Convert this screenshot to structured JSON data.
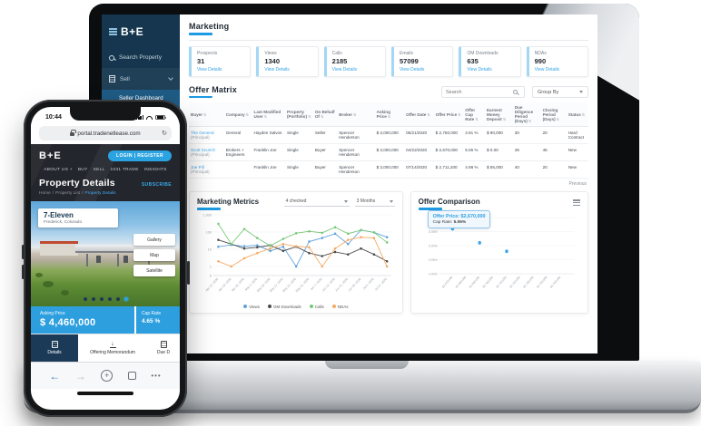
{
  "laptop": {
    "sidebar": {
      "logo": "B+E",
      "items": [
        {
          "icon": "search-icon",
          "label": "Search Property"
        },
        {
          "icon": "building-icon",
          "label": "Sell"
        }
      ],
      "active_subitem": "Seller Dashboard"
    },
    "marketing": {
      "title": "Marketing",
      "cards": [
        {
          "label": "Prospects",
          "value": "31",
          "link": "View Details"
        },
        {
          "label": "Views",
          "value": "1340",
          "link": "View Details"
        },
        {
          "label": "Calls",
          "value": "2185",
          "link": "View Details"
        },
        {
          "label": "Emails",
          "value": "57099",
          "link": "View Details"
        },
        {
          "label": "OM Downloads",
          "value": "635",
          "link": "View Details"
        },
        {
          "label": "NDAs",
          "value": "990",
          "link": "View Details"
        }
      ]
    },
    "offer_matrix": {
      "title": "Offer Matrix",
      "search_placeholder": "Search",
      "group_by_label": "Group By",
      "columns": [
        "Buyer",
        "Company",
        "Last Modified User",
        "Property (Portfolio)",
        "On Behalf Of",
        "Broker",
        "Asking Price",
        "Offer Date",
        "Offer Price",
        "Offer Cap Rate",
        "Earnest Money Deposit",
        "Due Diligence Period (Days)",
        "Closing Period (Days)",
        "Status"
      ],
      "rows": [
        {
          "sub": "(Principal)",
          "cells": [
            "The General",
            "General",
            "Hayden Salvos",
            "Single",
            "Seller",
            "Spencer Henderson",
            "$ 3,000,000",
            "05/21/2020",
            "$ 2,750,000",
            "4.91 %",
            "$ 90,000",
            "30",
            "20",
            "Hard Contract"
          ]
        },
        {
          "sub": "(Principal)",
          "cells": [
            "Scott Scurich",
            "Brokers + Engineers",
            "Franklin Joe",
            "Single",
            "Buyer",
            "Spencer Henderson",
            "$ 3,000,000",
            "04/22/2020",
            "$ 2,670,000",
            "5.06 %",
            "$ 0.00",
            "45",
            "45",
            "New"
          ]
        },
        {
          "sub": "(Principal)",
          "cells": [
            "Joe Pill",
            "",
            "Franklin Joe",
            "Single",
            "Buyer",
            "Spencer Henderson",
            "$ 3,000,000",
            "07/14/2020",
            "$ 2,711,200",
            "4.98 %",
            "$ 55,000",
            "40",
            "20",
            "New"
          ]
        }
      ],
      "pagination": "Previous"
    },
    "metrics_card": {
      "title": "Marketing Metrics",
      "filter_label": "4 checked",
      "range_label": "3 Months"
    },
    "comparison_card": {
      "title": "Offer Comparison"
    }
  },
  "phone": {
    "status": {
      "time": "10:44"
    },
    "url": "portal.tradenetlease.com",
    "header": {
      "logo": "B+E",
      "login_label": "LOGIN | REGISTER",
      "nav": [
        "ABOUT US +",
        "BUY",
        "SELL",
        "1031 TRADE",
        "INSIGHTS"
      ],
      "title": "Property Details",
      "subscribe_label": "SUBSCRIBE",
      "breadcrumb": [
        "Home",
        "Property List",
        "Property Details"
      ]
    },
    "photo": {
      "name": "7-Eleven",
      "location": "Frederick, Colorado",
      "buttons": [
        "Gallery",
        "Map",
        "Satellite"
      ],
      "dots_count": 6,
      "active_dot": 6
    },
    "price": {
      "label": "Asking Price",
      "value": "$ 4,460,000",
      "cap_label": "Cap Rate",
      "cap_value": "4.65 %"
    },
    "tabs": [
      {
        "label": "Details",
        "active": true
      },
      {
        "label": "Offering Memorandum",
        "active": false
      },
      {
        "label": "Due D",
        "active": false
      }
    ]
  },
  "colors": {
    "accent_blue": "#2d9fdf",
    "sidebar_navy": "#15364e",
    "link_blue": "#3da5e8"
  },
  "chart_data": [
    {
      "type": "line",
      "title": "Marketing Metrics",
      "y_scale": "log",
      "y_ticks": [
        "1,000",
        "100",
        "10",
        "1",
        "0"
      ],
      "legend_position": "bottom",
      "grid": true,
      "x": [
        "Apr 12, 2020",
        "Apr 19, 2020",
        "Apr 26, 2020",
        "May 3, 2020",
        "May 10, 2020",
        "May 17, 2020",
        "May 24, 2020",
        "May 31, 2020",
        "Jun 7, 2020",
        "Jun 14, 2020",
        "Jun 21, 2020",
        "Jun 28, 2020",
        "Jul 5, 2020",
        "Jul 12, 2020"
      ],
      "series": [
        {
          "name": "Views",
          "color": "#5fa2dc",
          "values": [
            14,
            18,
            15,
            17,
            8,
            14,
            1,
            28,
            45,
            80,
            20,
            130,
            95,
            50
          ]
        },
        {
          "name": "OM Downloads",
          "color": "#4a4a4a",
          "values": [
            35,
            20,
            11,
            13,
            17,
            8,
            14,
            6,
            4,
            7,
            5,
            11,
            5,
            2
          ]
        },
        {
          "name": "Calls",
          "color": "#77c877",
          "values": [
            300,
            20,
            150,
            45,
            16,
            40,
            85,
            110,
            90,
            190,
            80,
            130,
            95,
            25
          ]
        },
        {
          "name": "NDAs",
          "color": "#f5a962",
          "values": [
            2,
            1,
            3,
            6,
            11,
            20,
            15,
            13,
            1,
            11,
            35,
            50,
            45,
            1
          ]
        }
      ]
    },
    {
      "type": "scatter",
      "title": "Offer Comparison",
      "ylabel": "Cap Rate",
      "xlabel": "Offer Price",
      "y_ticks": [
        "5.10%",
        "5.05%",
        "5.00%",
        "4.95%",
        "4.90%"
      ],
      "y_range": [
        4.9,
        5.1
      ],
      "x_range": [
        2660000,
        2760000
      ],
      "x_tick_values": [
        2670000,
        2680000,
        2690000,
        2700000,
        2710000,
        2720000,
        2730000,
        2740000,
        2750000
      ],
      "x_tick_labels": [
        "$2,670,000",
        "$2,680,000",
        "$2,690,000",
        "$2,700,000",
        "$2,710,000",
        "$2,720,000",
        "$2,730,000",
        "$2,740,000",
        "$2,750,000"
      ],
      "point_color": "#3da5e8",
      "points": [
        {
          "x": 2670000,
          "y": 5.06
        },
        {
          "x": 2690000,
          "y": 5.01
        },
        {
          "x": 2710000,
          "y": 4.98
        }
      ],
      "tooltip": {
        "line1": "Offer Price: $2,670,000",
        "line2_label": "Cap Rate: ",
        "line2_value": "5.06%"
      }
    }
  ]
}
